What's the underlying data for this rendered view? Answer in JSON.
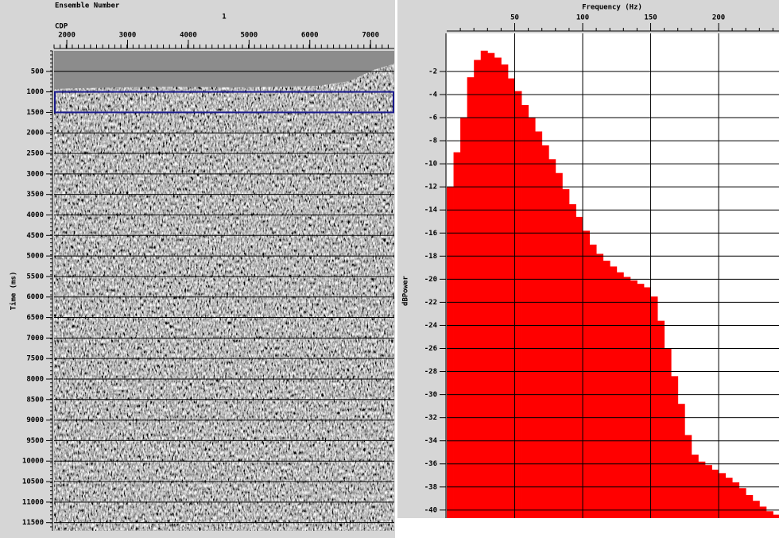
{
  "seismic_panel": {
    "title": "Ensemble Number",
    "ensemble": 1,
    "x_label": "CDP",
    "y_label": "Time (ms)",
    "xlim": [
      1790,
      7390
    ],
    "xticks": [
      2000,
      3000,
      4000,
      5000,
      6000,
      7000
    ],
    "ylim": [
      0,
      11700
    ],
    "yticks": [
      500,
      1000,
      1500,
      2000,
      2500,
      3000,
      3500,
      4000,
      4500,
      5000,
      5500,
      6000,
      6500,
      7000,
      7500,
      8000,
      8500,
      9000,
      9500,
      10000,
      10500,
      11000,
      11500
    ],
    "selection": [
      1000,
      1500
    ],
    "selection_color": "#1a1a8c"
  },
  "chart_data": {
    "type": "histogram",
    "x_label": "Frequency (Hz)",
    "y_label": "dBPower",
    "bins": [
      0,
      5,
      10,
      15,
      20,
      25,
      30,
      35,
      40,
      45,
      50,
      55,
      60,
      65,
      70,
      75,
      80,
      85,
      90,
      95,
      100,
      105,
      110,
      115,
      120,
      125,
      130,
      135,
      140,
      145,
      150,
      155,
      160,
      165,
      170,
      175,
      180,
      185,
      190,
      195,
      200,
      205,
      210,
      215,
      220,
      225,
      230,
      235,
      240,
      245
    ],
    "values": [
      -12,
      -9,
      -6,
      -2.5,
      -1,
      -0.2,
      -0.4,
      -0.8,
      -1.4,
      -2.6,
      -3.7,
      -4.9,
      -6,
      -7.2,
      -8.4,
      -9.6,
      -10.8,
      -12.2,
      -13.5,
      -14.6,
      -15.8,
      -17,
      -17.8,
      -18.4,
      -18.9,
      -19.4,
      -19.8,
      -20.1,
      -20.4,
      -20.7,
      -21.5,
      -23.6,
      -26,
      -28.4,
      -30.8,
      -33.5,
      -35.2,
      -35.8,
      -36.1,
      -36.5,
      -36.8,
      -37.2,
      -37.6,
      -38.1,
      -38.7,
      -39.2,
      -39.7,
      -40.1,
      -40.4
    ],
    "color": "#ff0000",
    "xlim": [
      0,
      244.4
    ],
    "ylim": [
      -40.7,
      1.3
    ],
    "xticks": [
      50,
      100,
      150,
      200
    ],
    "yticks": [
      -2,
      -4,
      -6,
      -8,
      -10,
      -12,
      -14,
      -16,
      -18,
      -20,
      -22,
      -24,
      -26,
      -28,
      -30,
      -32,
      -34,
      -36,
      -38,
      -40
    ],
    "grid": true
  }
}
